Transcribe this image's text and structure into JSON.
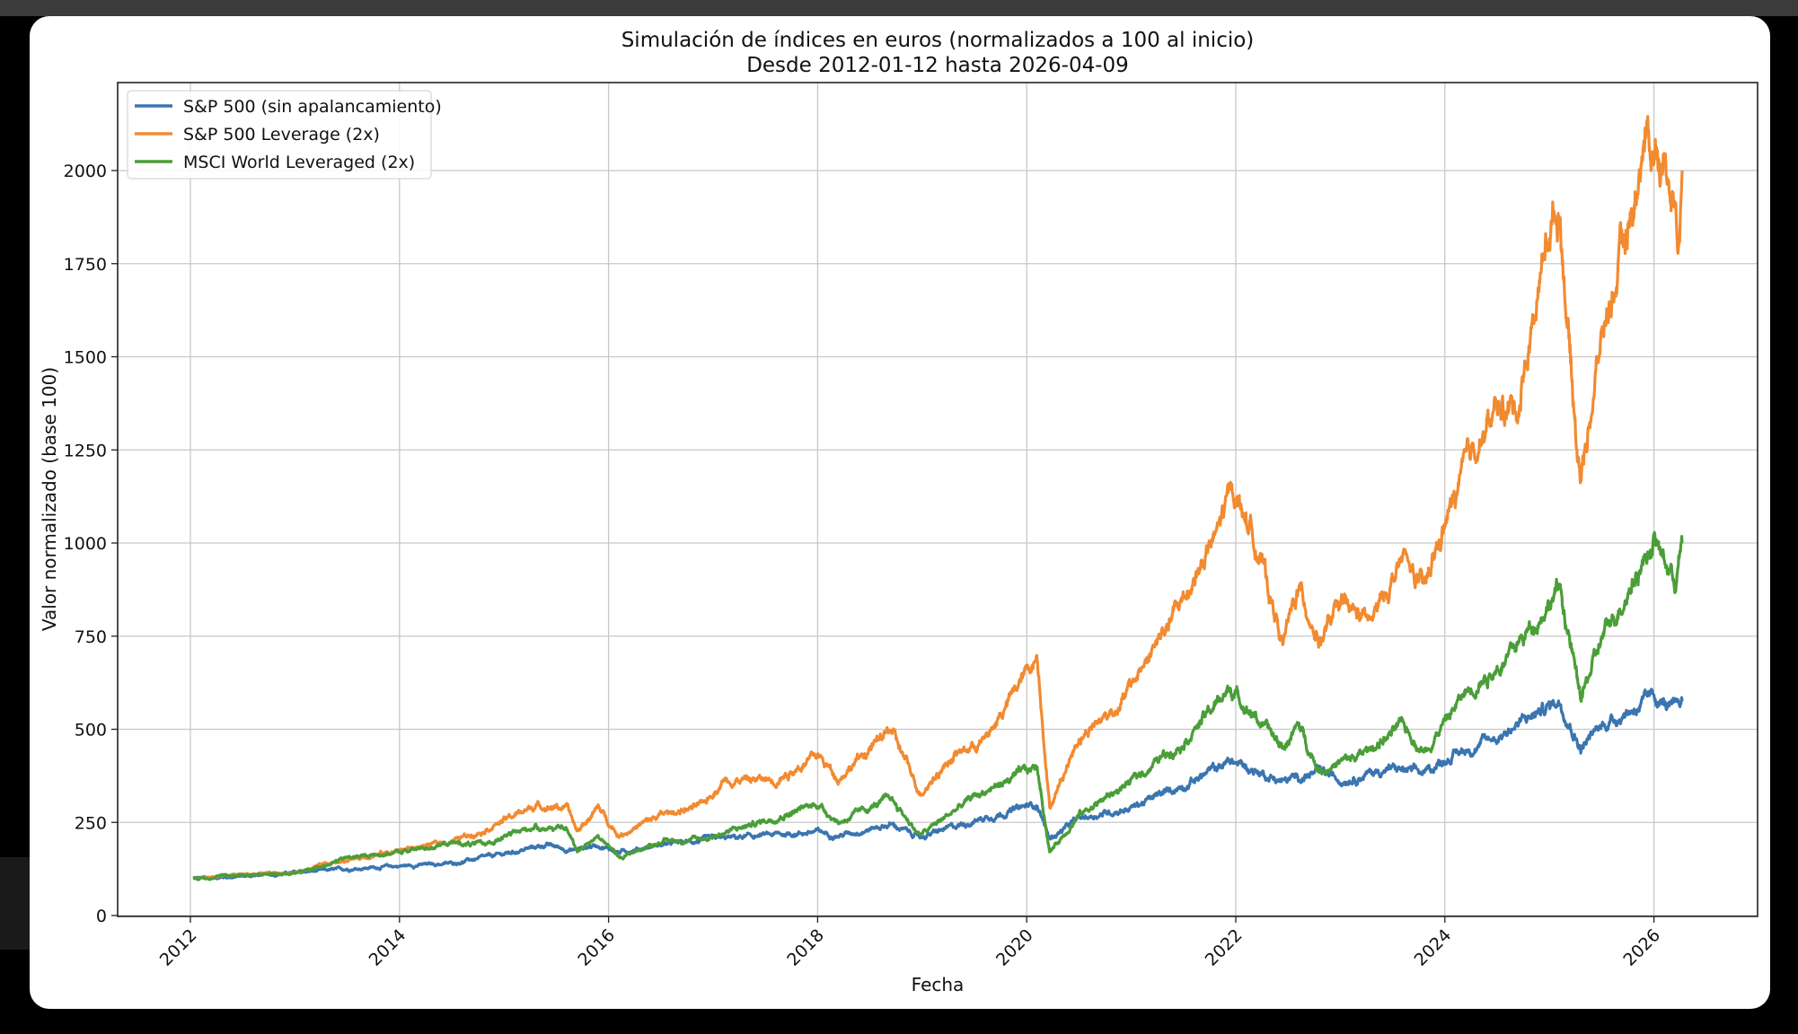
{
  "chart_data": {
    "type": "line",
    "title": "Simulación de índices en euros (normalizados a 100 al inicio)",
    "subtitle": "Desde 2012-01-12 hasta 2026-04-09",
    "xlabel": "Fecha",
    "ylabel": "Valor normalizado (base 100)",
    "xlim": [
      2011.35,
      2027.0
    ],
    "ylim": [
      0,
      2240
    ],
    "x_ticks": [
      "2012",
      "2014",
      "2016",
      "2018",
      "2020",
      "2022",
      "2024",
      "2026"
    ],
    "y_ticks": [
      "0",
      "250",
      "500",
      "750",
      "1000",
      "1250",
      "1500",
      "1750",
      "2000"
    ],
    "grid": true,
    "legend_position": "top-left",
    "series": [
      {
        "name": "S&P 500 (sin apalancamiento)",
        "color": "#3a75b0",
        "points": [
          [
            2012.03,
            100
          ],
          [
            2012.5,
            105
          ],
          [
            2013,
            115
          ],
          [
            2013.5,
            125
          ],
          [
            2014,
            133
          ],
          [
            2014.5,
            140
          ],
          [
            2015,
            165
          ],
          [
            2015.4,
            190
          ],
          [
            2015.65,
            175
          ],
          [
            2015.9,
            190
          ],
          [
            2016.1,
            170
          ],
          [
            2016.5,
            190
          ],
          [
            2017,
            205
          ],
          [
            2017.5,
            215
          ],
          [
            2018,
            225
          ],
          [
            2018.2,
            215
          ],
          [
            2018.7,
            245
          ],
          [
            2018.98,
            210
          ],
          [
            2019.5,
            255
          ],
          [
            2020.1,
            300
          ],
          [
            2020.22,
            205
          ],
          [
            2020.5,
            260
          ],
          [
            2021,
            290
          ],
          [
            2021.5,
            350
          ],
          [
            2021.95,
            415
          ],
          [
            2022.45,
            360
          ],
          [
            2022.8,
            385
          ],
          [
            2023,
            365
          ],
          [
            2023.5,
            395
          ],
          [
            2023.8,
            380
          ],
          [
            2024,
            420
          ],
          [
            2024.5,
            480
          ],
          [
            2025.1,
            580
          ],
          [
            2025.3,
            450
          ],
          [
            2025.5,
            510
          ],
          [
            2026,
            585
          ],
          [
            2026.2,
            550
          ],
          [
            2026.27,
            575
          ]
        ]
      },
      {
        "name": "S&P 500 Leverage (2x)",
        "color": "#f28a30",
        "points": [
          [
            2012.03,
            100
          ],
          [
            2012.5,
            110
          ],
          [
            2013,
            115
          ],
          [
            2013.5,
            150
          ],
          [
            2014,
            175
          ],
          [
            2014.5,
            200
          ],
          [
            2014.8,
            230
          ],
          [
            2015.3,
            295
          ],
          [
            2015.6,
            290
          ],
          [
            2015.7,
            225
          ],
          [
            2015.9,
            290
          ],
          [
            2016.1,
            215
          ],
          [
            2016.5,
            270
          ],
          [
            2016.9,
            295
          ],
          [
            2017.1,
            365
          ],
          [
            2017.6,
            365
          ],
          [
            2018,
            430
          ],
          [
            2018.2,
            370
          ],
          [
            2018.7,
            500
          ],
          [
            2018.98,
            330
          ],
          [
            2019.3,
            430
          ],
          [
            2019.6,
            470
          ],
          [
            2020.1,
            700
          ],
          [
            2020.22,
            290
          ],
          [
            2020.5,
            480
          ],
          [
            2020.9,
            570
          ],
          [
            2021.5,
            850
          ],
          [
            2021.8,
            1010
          ],
          [
            2021.97,
            1150
          ],
          [
            2022.2,
            1000
          ],
          [
            2022.45,
            730
          ],
          [
            2022.6,
            880
          ],
          [
            2022.8,
            740
          ],
          [
            2023,
            830
          ],
          [
            2023.3,
            790
          ],
          [
            2023.6,
            960
          ],
          [
            2023.8,
            870
          ],
          [
            2024,
            1050
          ],
          [
            2024.3,
            1270
          ],
          [
            2024.5,
            1350
          ],
          [
            2024.7,
            1370
          ],
          [
            2025.0,
            1850
          ],
          [
            2025.1,
            1900
          ],
          [
            2025.25,
            1300
          ],
          [
            2025.3,
            1180
          ],
          [
            2025.5,
            1550
          ],
          [
            2025.8,
            1900
          ],
          [
            2025.9,
            2080
          ],
          [
            2026.05,
            2050
          ],
          [
            2026.2,
            1950
          ],
          [
            2026.23,
            1790
          ],
          [
            2026.27,
            2000
          ]
        ]
      },
      {
        "name": "MSCI World Leveraged (2x)",
        "color": "#4a9e38",
        "points": [
          [
            2012.03,
            100
          ],
          [
            2012.5,
            110
          ],
          [
            2013,
            112
          ],
          [
            2013.5,
            155
          ],
          [
            2014,
            170
          ],
          [
            2014.5,
            195
          ],
          [
            2014.8,
            190
          ],
          [
            2015.3,
            240
          ],
          [
            2015.6,
            230
          ],
          [
            2015.7,
            175
          ],
          [
            2015.9,
            215
          ],
          [
            2016.1,
            155
          ],
          [
            2016.5,
            200
          ],
          [
            2016.9,
            205
          ],
          [
            2017.5,
            255
          ],
          [
            2018,
            300
          ],
          [
            2018.2,
            250
          ],
          [
            2018.7,
            315
          ],
          [
            2018.98,
            215
          ],
          [
            2019.5,
            320
          ],
          [
            2020.1,
            400
          ],
          [
            2020.22,
            170
          ],
          [
            2020.5,
            270
          ],
          [
            2021,
            360
          ],
          [
            2021.5,
            470
          ],
          [
            2021.95,
            610
          ],
          [
            2022.45,
            450
          ],
          [
            2022.6,
            510
          ],
          [
            2022.8,
            390
          ],
          [
            2023.2,
            430
          ],
          [
            2023.6,
            510
          ],
          [
            2023.8,
            440
          ],
          [
            2024.2,
            600
          ],
          [
            2024.6,
            690
          ],
          [
            2025.1,
            880
          ],
          [
            2025.3,
            580
          ],
          [
            2025.5,
            740
          ],
          [
            2026,
            1010
          ],
          [
            2026.2,
            900
          ],
          [
            2026.27,
            1000
          ]
        ]
      }
    ]
  }
}
